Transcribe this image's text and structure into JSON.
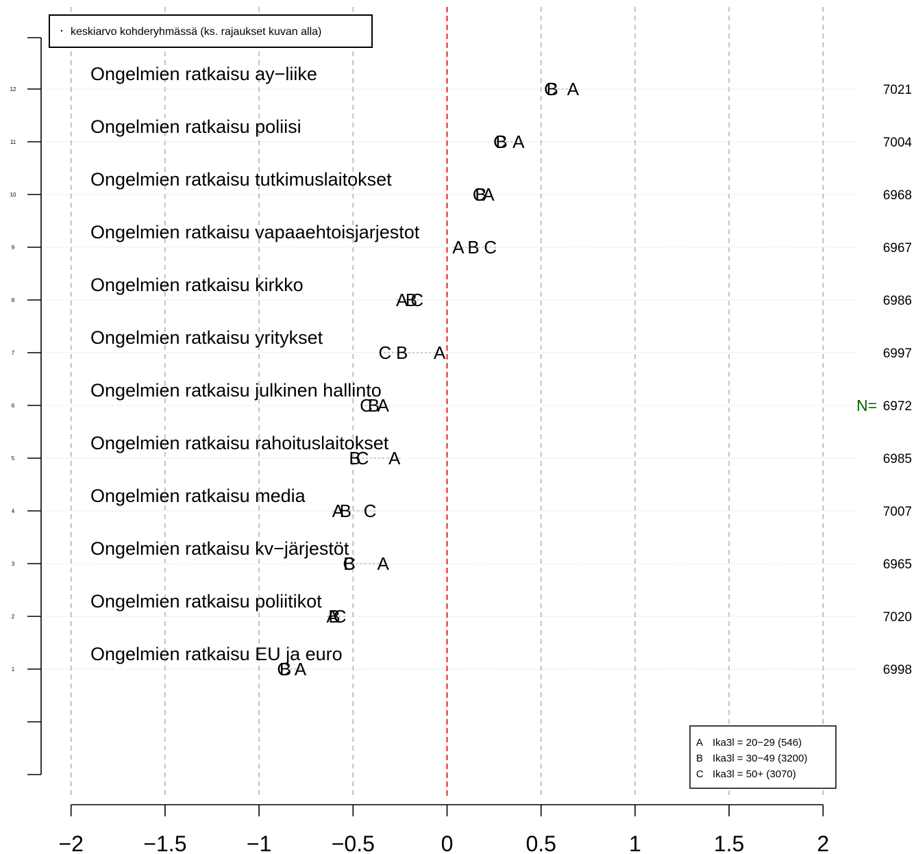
{
  "chart_data": {
    "type": "scatter",
    "legend_top": {
      "text": "keskiarvo kohderyhmässä (ks. rajaukset kuvan alla)",
      "placement": "top-left"
    },
    "x_ticks": [
      -2,
      -1.5,
      -1,
      -0.5,
      0,
      0.5,
      1,
      1.5,
      2
    ],
    "x_tick_labels": [
      "−2",
      "−1.5",
      "−1",
      "−0.5",
      "0",
      "0.5",
      "1",
      "1.5",
      "2"
    ],
    "xlim": [
      -2,
      2
    ],
    "reference_line": 0,
    "n_label": "N=",
    "row_ticks": [
      "1",
      "2",
      "3",
      "4",
      "5",
      "6",
      "7",
      "8",
      "9",
      "10",
      "11",
      "12"
    ],
    "series_legend": {
      "placement": "bottom-right",
      "entries": [
        {
          "letter": "A",
          "text": "Ika3l = 20−29 (546)"
        },
        {
          "letter": "B",
          "text": "Ika3l = 30−49 (3200)"
        },
        {
          "letter": "C",
          "text": "Ika3l = 50+ (3070)"
        }
      ]
    },
    "rows": [
      {
        "label": "Ongelmien ratkaisu ay−liike",
        "row": 12,
        "n": "7021",
        "A": 0.67,
        "B": 0.56,
        "C": 0.55
      },
      {
        "label": "Ongelmien ratkaisu poliisi",
        "row": 11,
        "n": "7004",
        "A": 0.38,
        "B": 0.29,
        "C": 0.28
      },
      {
        "label": "Ongelmien ratkaisu tutkimuslaitokset",
        "row": 10,
        "n": "6968",
        "A": 0.22,
        "B": 0.18,
        "C": 0.17
      },
      {
        "label": "Ongelmien ratkaisu vapaaehtoisjarjestot",
        "row": 9,
        "n": "6967",
        "A": 0.06,
        "B": 0.14,
        "C": 0.23
      },
      {
        "label": "Ongelmien ratkaisu kirkko",
        "row": 8,
        "n": "6986",
        "A": -0.24,
        "B": -0.19,
        "C": -0.16
      },
      {
        "label": "Ongelmien ratkaisu yritykset",
        "row": 7,
        "n": "6997",
        "A": -0.04,
        "B": -0.24,
        "C": -0.33
      },
      {
        "label": "Ongelmien ratkaisu julkinen hallinto",
        "row": 6,
        "n": "6972",
        "A": -0.34,
        "B": -0.39,
        "C": -0.43
      },
      {
        "label": "Ongelmien ratkaisu rahoituslaitokset",
        "row": 5,
        "n": "6985",
        "A": -0.28,
        "B": -0.49,
        "C": -0.45
      },
      {
        "label": "Ongelmien ratkaisu media",
        "row": 4,
        "n": "7007",
        "A": -0.58,
        "B": -0.54,
        "C": -0.41
      },
      {
        "label": "Ongelmien ratkaisu kv−järjestöt",
        "row": 3,
        "n": "6965",
        "A": -0.34,
        "B": -0.52,
        "C": -0.52
      },
      {
        "label": "Ongelmien ratkaisu poliitikot",
        "row": 2,
        "n": "7020",
        "A": -0.61,
        "B": -0.6,
        "C": -0.57
      },
      {
        "label": "Ongelmien ratkaisu EU ja euro",
        "row": 1,
        "n": "6998",
        "A": -0.78,
        "B": -0.86,
        "C": -0.87
      }
    ],
    "colors": {
      "reference": "#ff0000",
      "grid": "#aaaaaa",
      "n_label": "#006400",
      "text": "#000000"
    }
  }
}
